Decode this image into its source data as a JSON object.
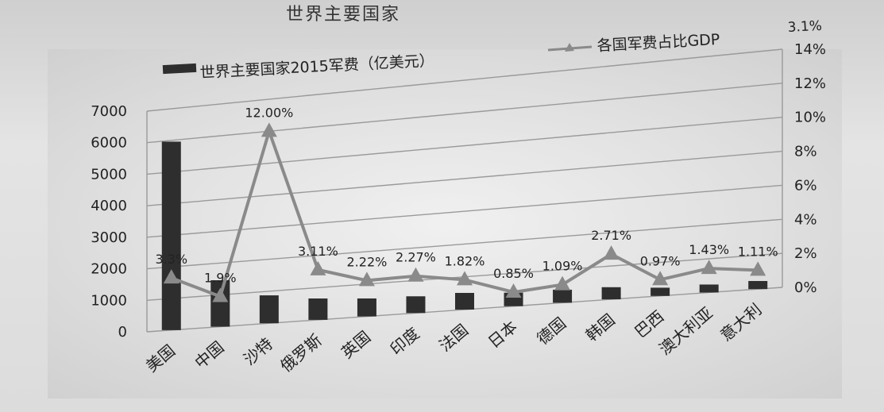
{
  "page": {
    "title_fragment": "世界主要国家"
  },
  "chart_data": {
    "type": "bar",
    "categories": [
      "美国",
      "中国",
      "沙特",
      "俄罗斯",
      "英国",
      "印度",
      "法国",
      "日本",
      "德国",
      "韩国",
      "巴西",
      "澳大利亚",
      "意大利"
    ],
    "series": [
      {
        "name": "世界主要国家2015军费（亿美元）",
        "type": "bar",
        "axis": "left",
        "values": [
          5960,
          1460,
          872,
          664,
          555,
          513,
          509,
          409,
          394,
          364,
          245,
          236,
          238
        ]
      },
      {
        "name": "各国军费占比GDP",
        "type": "line",
        "axis": "right",
        "values": [
          3.3,
          1.9,
          12.0,
          3.11,
          2.22,
          2.27,
          1.82,
          0.85,
          1.09,
          2.71,
          0.97,
          1.43,
          1.11
        ],
        "data_labels": [
          "3.3%",
          "1.9%",
          "12.00%",
          "3.11%",
          "2.22%",
          "2.27%",
          "1.82%",
          "0.85%",
          "1.09%",
          "2.71%",
          "0.97%",
          "1.43%",
          "1.11%"
        ]
      }
    ],
    "legend_extra": "3.1%",
    "left_axis": {
      "ticks": [
        "0",
        "1000",
        "2000",
        "3000",
        "4000",
        "5000",
        "6000",
        "7000"
      ],
      "ylim": [
        0,
        7000
      ]
    },
    "right_axis": {
      "ticks": [
        "0%",
        "2%",
        "4%",
        "6%",
        "8%",
        "10%",
        "12%",
        "14%"
      ],
      "ylim": [
        0,
        14
      ]
    },
    "legend_position": "top",
    "grid": true,
    "colors": {
      "bar": "#2e2e2e",
      "line": "#8a8a8a",
      "grid": "#9a9a9a",
      "text": "#222222"
    }
  }
}
